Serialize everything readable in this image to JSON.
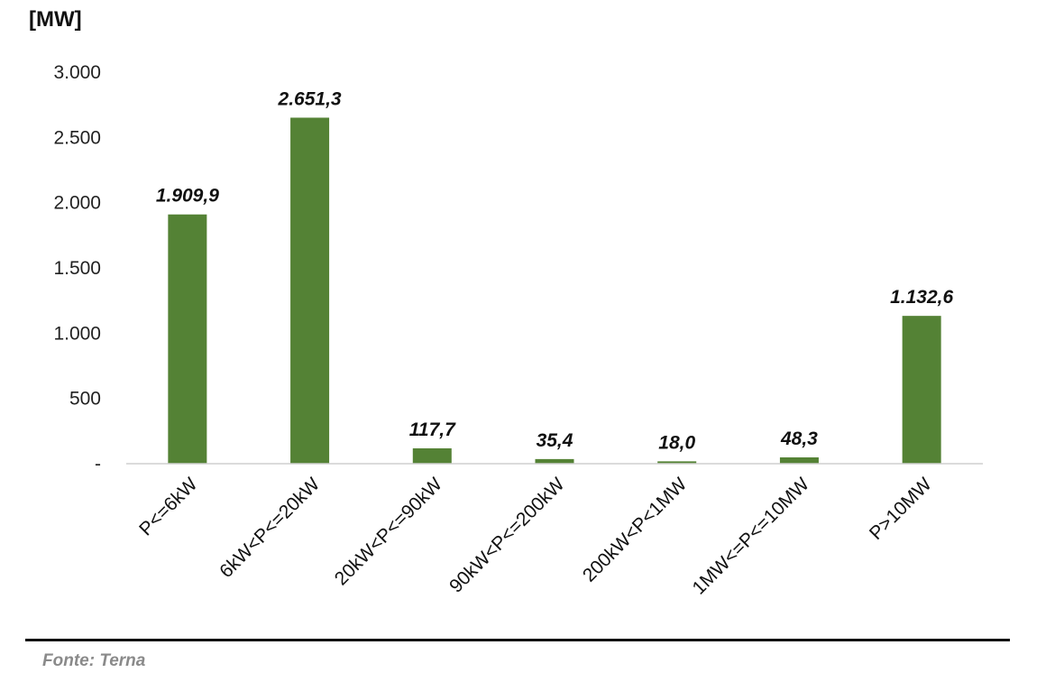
{
  "chart_data": {
    "type": "bar",
    "unit_label": "[MW]",
    "categories": [
      "P<=6kW",
      "6kW<P<=20kW",
      "20kW<P<=90kW",
      "90kW<P<=200kW",
      "200kW<P<1MW",
      "1MW<=P<=10MW",
      "P>10MW"
    ],
    "values": [
      1909.9,
      2651.3,
      117.7,
      35.4,
      18.0,
      48.3,
      1132.6
    ],
    "data_labels": [
      "1.909,9",
      "2.651,3",
      "117,7",
      "35,4",
      "18,0",
      "48,3",
      "1.132,6"
    ],
    "ylim": [
      0,
      3000
    ],
    "yticks": [
      0,
      500,
      1000,
      1500,
      2000,
      2500,
      3000
    ],
    "ytick_labels": [
      "-",
      "500",
      "1.000",
      "1.500",
      "2.000",
      "2.500",
      "3.000"
    ],
    "bar_color": "#548235",
    "grid": false,
    "legend": "none"
  },
  "source": "Fonte: Terna"
}
